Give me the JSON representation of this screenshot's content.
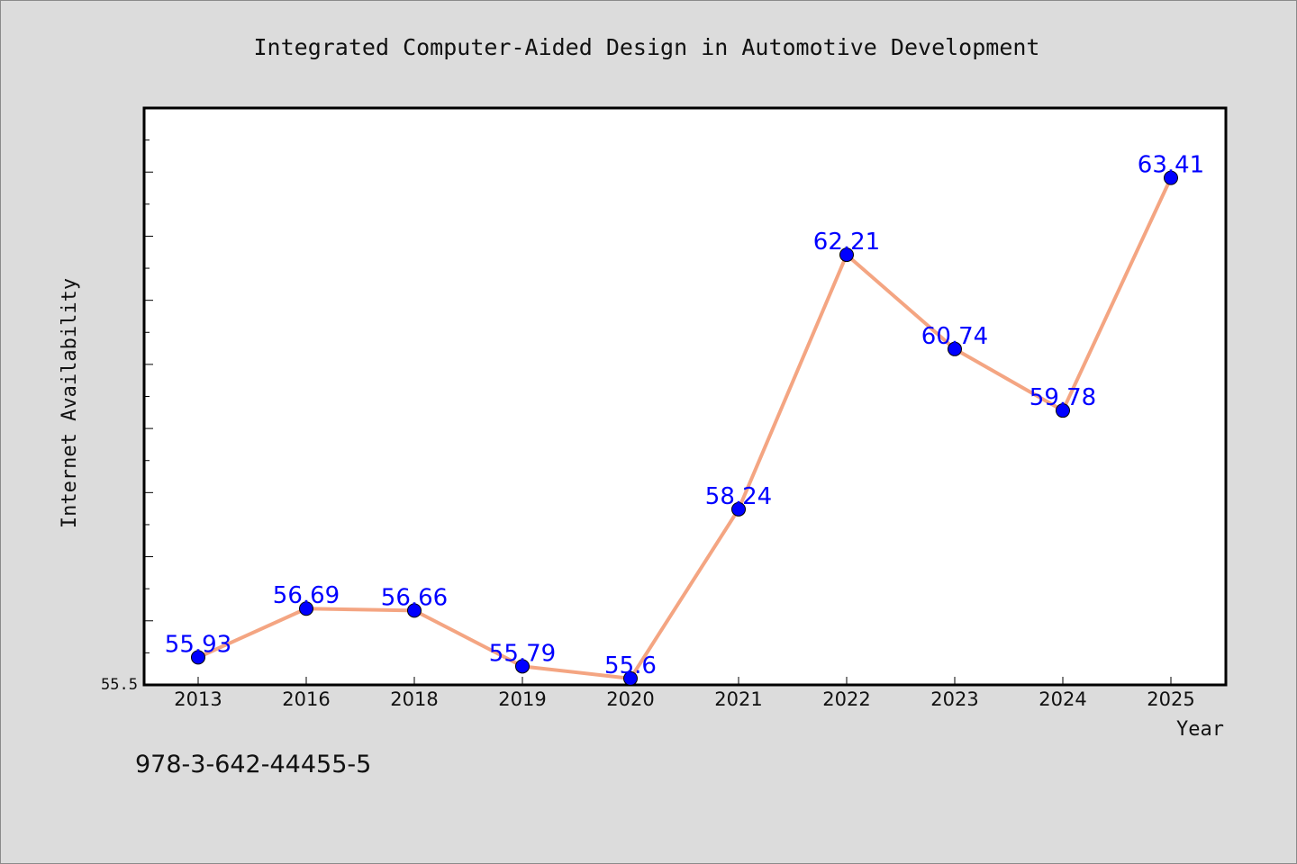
{
  "chart_data": {
    "type": "line",
    "title": "Integrated Computer-Aided Design in Automotive Development",
    "xlabel": "Year",
    "ylabel": "Internet Availability",
    "categories": [
      "2013",
      "2016",
      "2018",
      "2019",
      "2020",
      "2021",
      "2022",
      "2023",
      "2024",
      "2025"
    ],
    "series": [
      {
        "values": [
          55.93,
          56.69,
          56.66,
          55.79,
          55.6,
          58.24,
          62.21,
          60.74,
          59.78,
          63.41
        ],
        "labels": [
          "55.93",
          "56.69",
          "56.66",
          "55.79",
          "55.6",
          "58.24",
          "62.21",
          "60.74",
          "59.78",
          "63.41"
        ]
      }
    ],
    "ylim": [
      55.5,
      64.5
    ],
    "y_tick_labels": [
      "55.5"
    ],
    "grid": false,
    "colors": {
      "line": "#f4a582",
      "marker": "#0000ff",
      "data_label": "#0000ff",
      "background": "#dcdcdc",
      "plot_area": "#ffffff"
    }
  },
  "caption": "978-3-642-44455-5"
}
